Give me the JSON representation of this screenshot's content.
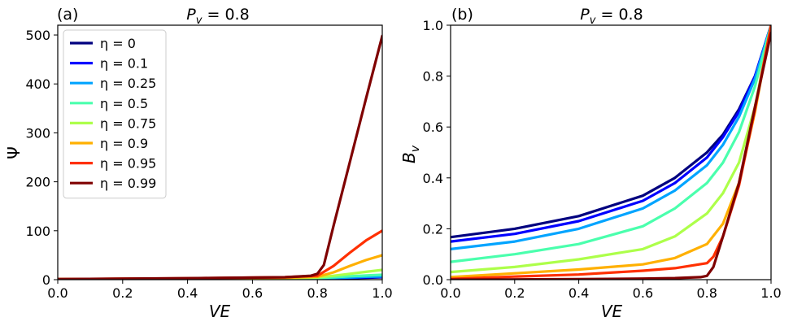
{
  "chart_data": [
    {
      "type": "line",
      "panel_label": "(a)",
      "title": "P_v = 0.8",
      "xlabel": "VE",
      "ylabel": "Ψ",
      "xlim": [
        0,
        1
      ],
      "ylim": [
        0,
        520
      ],
      "xticks": [
        "0.0",
        "0.2",
        "0.4",
        "0.6",
        "0.8",
        "1.0"
      ],
      "yticks": [
        "0",
        "100",
        "200",
        "300",
        "400",
        "500"
      ],
      "legend": "top-left",
      "series": [
        {
          "name": "η = 0",
          "color": "#00007f",
          "x": [
            0,
            0.4,
            0.7,
            0.8,
            0.85,
            0.9,
            0.95,
            1.0
          ],
          "y": [
            1,
            1.2,
            1.6,
            2,
            2.5,
            3,
            4,
            5
          ]
        },
        {
          "name": "η = 0.1",
          "color": "#0000ff",
          "x": [
            0,
            0.4,
            0.7,
            0.8,
            0.85,
            0.9,
            0.95,
            1.0
          ],
          "y": [
            1,
            1.3,
            1.8,
            2.2,
            3,
            4,
            5,
            5.5
          ]
        },
        {
          "name": "η = 0.25",
          "color": "#00a4ff",
          "x": [
            0,
            0.4,
            0.7,
            0.8,
            0.85,
            0.9,
            0.95,
            1.0
          ],
          "y": [
            1,
            1.4,
            2,
            2.6,
            3.5,
            4.5,
            6,
            6.7
          ]
        },
        {
          "name": "η = 0.5",
          "color": "#4affad",
          "x": [
            0,
            0.4,
            0.7,
            0.8,
            0.85,
            0.9,
            0.95,
            1.0
          ],
          "y": [
            1,
            1.6,
            2.5,
            3.2,
            5,
            7,
            8.5,
            10
          ]
        },
        {
          "name": "η = 0.75",
          "color": "#adff4a",
          "x": [
            0,
            0.4,
            0.7,
            0.8,
            0.85,
            0.9,
            0.95,
            1.0
          ],
          "y": [
            1,
            2,
            3.2,
            4.5,
            8,
            12,
            16,
            20
          ]
        },
        {
          "name": "η = 0.9",
          "color": "#ffb000",
          "x": [
            0,
            0.4,
            0.7,
            0.8,
            0.85,
            0.9,
            0.95,
            1.0
          ],
          "y": [
            1,
            2.5,
            4,
            6,
            15,
            28,
            40,
            50
          ]
        },
        {
          "name": "η = 0.95",
          "color": "#ff3000",
          "x": [
            0,
            0.4,
            0.7,
            0.8,
            0.85,
            0.9,
            0.95,
            1.0
          ],
          "y": [
            1,
            2.8,
            5,
            8,
            28,
            55,
            80,
            100
          ]
        },
        {
          "name": "η = 0.99",
          "color": "#7f0000",
          "x": [
            0,
            0.4,
            0.7,
            0.78,
            0.8,
            0.82,
            0.85,
            0.9,
            0.95,
            1.0
          ],
          "y": [
            1,
            3,
            5,
            8,
            12,
            30,
            110,
            240,
            370,
            498
          ]
        }
      ]
    },
    {
      "type": "line",
      "panel_label": "(b)",
      "title": "P_v = 0.8",
      "xlabel": "VE",
      "ylabel": "B_v",
      "xlim": [
        0,
        1
      ],
      "ylim": [
        0,
        1
      ],
      "xticks": [
        "0.0",
        "0.2",
        "0.4",
        "0.6",
        "0.8",
        "1.0"
      ],
      "yticks": [
        "0.0",
        "0.2",
        "0.4",
        "0.6",
        "0.8",
        "1.0"
      ],
      "series": [
        {
          "name": "η = 0",
          "color": "#00007f",
          "x": [
            0,
            0.2,
            0.4,
            0.6,
            0.7,
            0.8,
            0.85,
            0.9,
            0.95,
            1.0
          ],
          "y": [
            0.167,
            0.2,
            0.25,
            0.33,
            0.4,
            0.5,
            0.57,
            0.67,
            0.8,
            1.0
          ]
        },
        {
          "name": "η = 0.1",
          "color": "#0000ff",
          "x": [
            0,
            0.2,
            0.4,
            0.6,
            0.7,
            0.8,
            0.85,
            0.9,
            0.95,
            1.0
          ],
          "y": [
            0.15,
            0.18,
            0.23,
            0.31,
            0.38,
            0.48,
            0.56,
            0.66,
            0.8,
            1.0
          ]
        },
        {
          "name": "η = 0.25",
          "color": "#00a4ff",
          "x": [
            0,
            0.2,
            0.4,
            0.6,
            0.7,
            0.8,
            0.85,
            0.9,
            0.95,
            1.0
          ],
          "y": [
            0.12,
            0.15,
            0.2,
            0.28,
            0.35,
            0.45,
            0.53,
            0.64,
            0.79,
            1.0
          ]
        },
        {
          "name": "η = 0.5",
          "color": "#4affad",
          "x": [
            0,
            0.2,
            0.4,
            0.6,
            0.7,
            0.8,
            0.85,
            0.9,
            0.95,
            1.0
          ],
          "y": [
            0.07,
            0.1,
            0.14,
            0.21,
            0.28,
            0.38,
            0.46,
            0.58,
            0.76,
            1.0
          ]
        },
        {
          "name": "η = 0.75",
          "color": "#adff4a",
          "x": [
            0,
            0.2,
            0.4,
            0.6,
            0.7,
            0.8,
            0.85,
            0.9,
            0.95,
            1.0
          ],
          "y": [
            0.03,
            0.05,
            0.08,
            0.12,
            0.17,
            0.26,
            0.34,
            0.46,
            0.68,
            1.0
          ]
        },
        {
          "name": "η = 0.9",
          "color": "#ffb000",
          "x": [
            0,
            0.2,
            0.4,
            0.6,
            0.7,
            0.8,
            0.85,
            0.9,
            0.95,
            1.0
          ],
          "y": [
            0.01,
            0.025,
            0.04,
            0.06,
            0.085,
            0.14,
            0.22,
            0.38,
            0.66,
            1.0
          ]
        },
        {
          "name": "η = 0.95",
          "color": "#ff3000",
          "x": [
            0,
            0.2,
            0.4,
            0.6,
            0.7,
            0.8,
            0.82,
            0.85,
            0.9,
            0.95,
            1.0
          ],
          "y": [
            0.003,
            0.012,
            0.02,
            0.035,
            0.045,
            0.065,
            0.09,
            0.17,
            0.37,
            0.67,
            1.0
          ]
        },
        {
          "name": "η = 0.99",
          "color": "#7f0000",
          "x": [
            0,
            0.2,
            0.4,
            0.6,
            0.7,
            0.78,
            0.8,
            0.82,
            0.85,
            0.9,
            0.95,
            1.0
          ],
          "y": [
            0.0,
            0.001,
            0.002,
            0.004,
            0.006,
            0.01,
            0.015,
            0.05,
            0.17,
            0.38,
            0.68,
            0.97
          ]
        }
      ]
    }
  ]
}
